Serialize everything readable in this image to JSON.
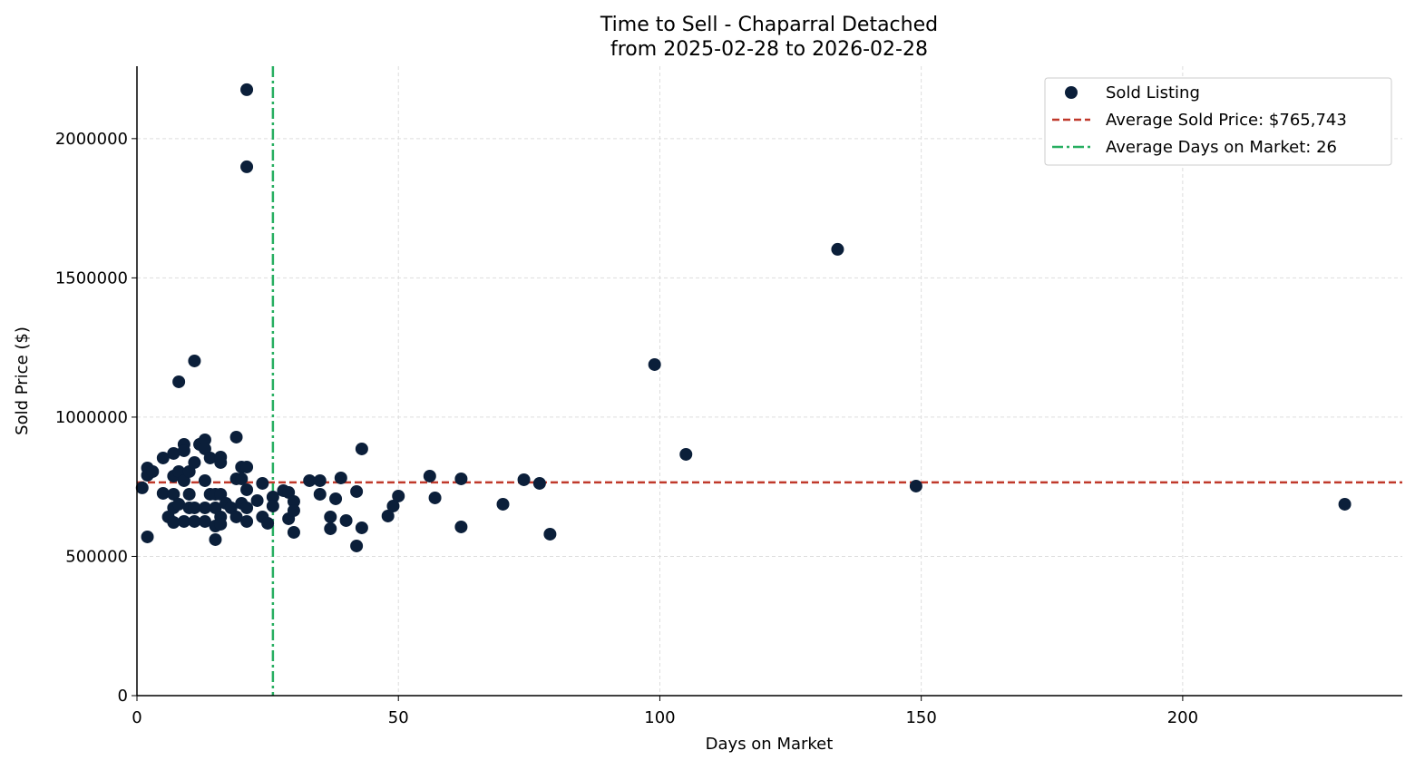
{
  "chart_data": {
    "type": "scatter",
    "title": "Time to Sell - Chaparral Detached",
    "subtitle": "from 2025-02-28 to 2026-02-28",
    "xlabel": "Days on Market",
    "ylabel": "Sold Price ($)",
    "xlim": [
      0,
      242
    ],
    "ylim": [
      0,
      2260000
    ],
    "xticks": [
      0,
      50,
      100,
      150,
      200
    ],
    "yticks": [
      0,
      500000,
      1000000,
      1500000,
      2000000
    ],
    "grid": true,
    "legend_placement": "top-right",
    "colors": {
      "points": "#0b1f3a",
      "avg_price": "#c0392b",
      "avg_days": "#27ae60"
    },
    "legend": [
      "Sold Listing",
      "Average Sold Price: $765,743",
      "Average Days on Market: 26"
    ],
    "avg_price": 765743,
    "avg_days": 26,
    "points": [
      [
        1,
        746000
      ],
      [
        2,
        570000
      ],
      [
        2,
        817500
      ],
      [
        2,
        791500
      ],
      [
        3,
        804500
      ],
      [
        5,
        853300
      ],
      [
        5,
        726300
      ],
      [
        6,
        641600
      ],
      [
        7,
        788200
      ],
      [
        7,
        869600
      ],
      [
        7,
        674200
      ],
      [
        7,
        622000
      ],
      [
        7,
        723000
      ],
      [
        8,
        804500
      ],
      [
        8,
        1126900
      ],
      [
        8,
        687200
      ],
      [
        9,
        902200
      ],
      [
        9,
        879400
      ],
      [
        9,
        771900
      ],
      [
        9,
        625300
      ],
      [
        10,
        674200
      ],
      [
        10,
        723000
      ],
      [
        10,
        804500
      ],
      [
        11,
        1201800
      ],
      [
        11,
        837000
      ],
      [
        11,
        625300
      ],
      [
        11,
        674200
      ],
      [
        12,
        902200
      ],
      [
        12,
        902200
      ],
      [
        13,
        918500
      ],
      [
        13,
        885900
      ],
      [
        13,
        771900
      ],
      [
        13,
        625300
      ],
      [
        13,
        674200
      ],
      [
        14,
        723000
      ],
      [
        14,
        853300
      ],
      [
        15,
        674200
      ],
      [
        15,
        609000
      ],
      [
        15,
        560200
      ],
      [
        15,
        723000
      ],
      [
        16,
        641600
      ],
      [
        16,
        837000
      ],
      [
        16,
        723000
      ],
      [
        16,
        856600
      ],
      [
        16,
        615600
      ],
      [
        17,
        690500
      ],
      [
        18,
        674200
      ],
      [
        19,
        928200
      ],
      [
        19,
        778400
      ],
      [
        19,
        641600
      ],
      [
        20,
        820800
      ],
      [
        20,
        690500
      ],
      [
        20,
        778400
      ],
      [
        21,
        2175700
      ],
      [
        21,
        1898800
      ],
      [
        21,
        739300
      ],
      [
        21,
        625300
      ],
      [
        21,
        820800
      ],
      [
        21,
        674200
      ],
      [
        23,
        700300
      ],
      [
        24,
        762100
      ],
      [
        24,
        641600
      ],
      [
        25,
        618800
      ],
      [
        26,
        713300
      ],
      [
        26,
        680700
      ],
      [
        28,
        736100
      ],
      [
        29,
        729600
      ],
      [
        29,
        635100
      ],
      [
        30,
        697000
      ],
      [
        30,
        664400
      ],
      [
        30,
        586300
      ],
      [
        33,
        771900
      ],
      [
        35,
        771900
      ],
      [
        35,
        723000
      ],
      [
        37,
        641600
      ],
      [
        37,
        599300
      ],
      [
        38,
        706800
      ],
      [
        39,
        781700
      ],
      [
        40,
        628600
      ],
      [
        42,
        732800
      ],
      [
        42,
        537400
      ],
      [
        43,
        602500
      ],
      [
        43,
        885900
      ],
      [
        48,
        644900
      ],
      [
        49,
        680700
      ],
      [
        50,
        716500
      ],
      [
        56,
        788200
      ],
      [
        57,
        710000
      ],
      [
        62,
        778400
      ],
      [
        62,
        605800
      ],
      [
        70,
        687200
      ],
      [
        74,
        775200
      ],
      [
        77,
        762100
      ],
      [
        79,
        579700
      ],
      [
        99,
        1188800
      ],
      [
        105,
        866400
      ],
      [
        134,
        1602400
      ],
      [
        149,
        752400
      ],
      [
        231,
        687200
      ]
    ]
  }
}
